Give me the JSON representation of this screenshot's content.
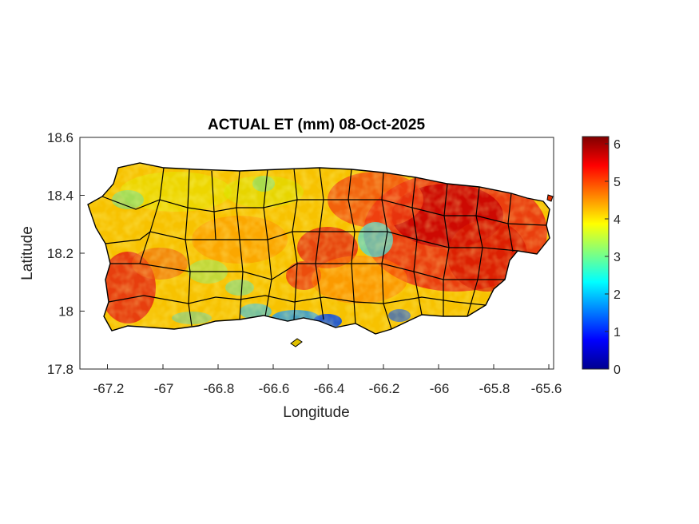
{
  "map": {
    "title": "ACTUAL ET (mm) 08-Oct-2025",
    "xlabel": "Longitude",
    "ylabel": "Latitude",
    "xlim": [
      -67.3,
      -65.58
    ],
    "ylim": [
      17.8,
      18.6
    ],
    "xticks": [
      -67.2,
      -67,
      -66.8,
      -66.6,
      -66.4,
      -66.2,
      -66,
      -65.8,
      -65.6
    ],
    "yticks": [
      17.8,
      18,
      18.2,
      18.4,
      18.6
    ],
    "xtick_labels": [
      "-67.2",
      "-67",
      "-66.8",
      "-66.6",
      "-66.4",
      "-66.2",
      "-66",
      "-65.8",
      "-65.6"
    ],
    "ytick_labels": [
      "17.8",
      "18",
      "18.2",
      "18.4",
      "18.6"
    ]
  },
  "colorbar": {
    "colormap": "jet",
    "range": [
      0,
      6.2
    ],
    "ticks": [
      0,
      1,
      2,
      3,
      4,
      5,
      6
    ],
    "tick_labels": [
      "0",
      "1",
      "2",
      "3",
      "4",
      "5",
      "6"
    ]
  }
}
